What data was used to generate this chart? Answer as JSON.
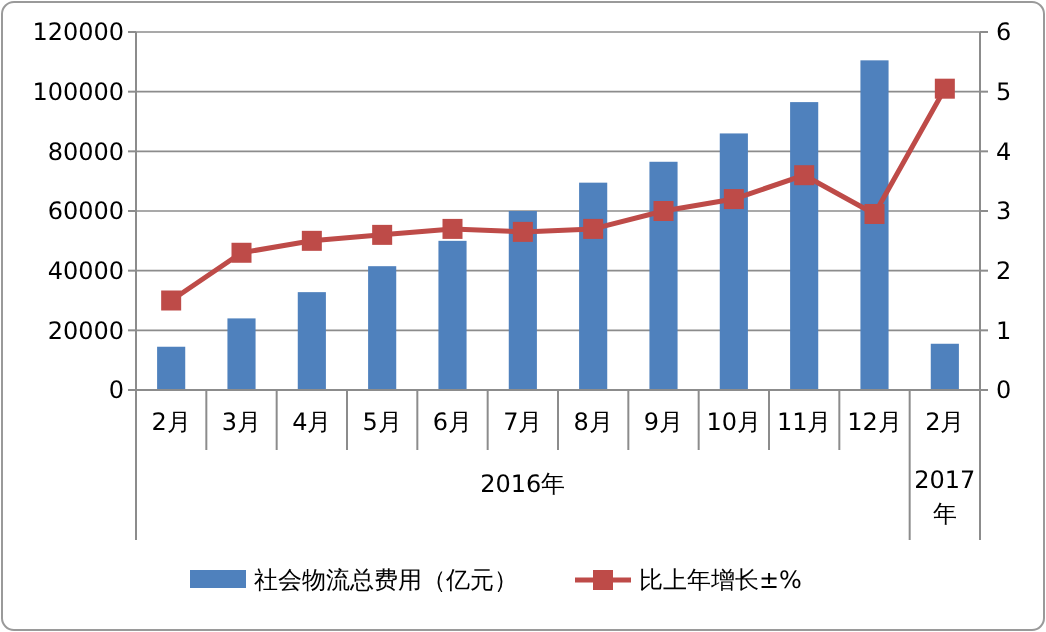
{
  "chart_data": {
    "type": "bar",
    "categories": [
      "2月",
      "3月",
      "4月",
      "5月",
      "6月",
      "7月",
      "8月",
      "9月",
      "10月",
      "11月",
      "12月",
      "2月"
    ],
    "series": [
      {
        "name": "社会物流总费用（亿元）",
        "color": "#4f81bd",
        "values": [
          14500,
          24000,
          32800,
          41500,
          50000,
          60000,
          69500,
          76500,
          86000,
          96500,
          110500,
          15500
        ]
      },
      {
        "name": "比上年增长±%",
        "type": "line",
        "axis": "y2",
        "color": "#be4b48",
        "marker": "square",
        "values": [
          1.5,
          2.3,
          2.5,
          2.6,
          2.7,
          2.65,
          2.7,
          3.0,
          3.2,
          3.6,
          2.95,
          5.05
        ]
      }
    ],
    "ylim": [
      0,
      120000
    ],
    "yticks": [
      0,
      20000,
      40000,
      60000,
      80000,
      100000,
      120000
    ],
    "y2lim": [
      0,
      6
    ],
    "y2ticks": [
      0,
      1,
      2,
      3,
      4,
      5,
      6
    ],
    "grid": "y",
    "legend": "bottom",
    "annotations": [
      "2016年",
      "2017年"
    ]
  }
}
